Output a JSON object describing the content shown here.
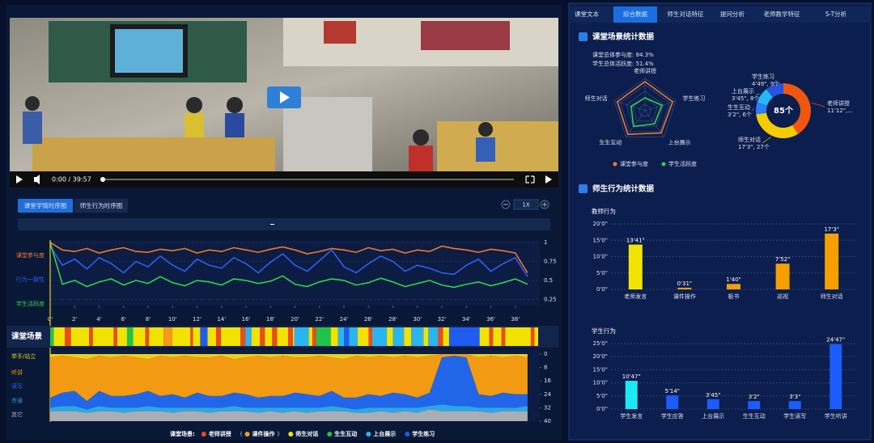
{
  "ui": {
    "video_time": "0:00 / 39:57",
    "tabs_left": [
      "课堂学情时序图",
      "师生行为时序图"
    ],
    "speed": "1X",
    "tabs_right": [
      "课堂文本",
      "综合数据",
      "师生对话特征",
      "提问分析",
      "老师教学特征",
      "S-T分析"
    ],
    "section1": "课堂场景统计数据",
    "stats": [
      "课堂总体参与度: 84.3%",
      "学生总体活跃度: 51.4%"
    ],
    "section2": "师生行为统计数据"
  },
  "chart_data": [
    {
      "type": "line",
      "x": [
        0,
        1,
        2,
        3,
        4,
        5,
        6,
        7,
        8,
        9,
        10,
        11,
        12,
        13,
        14,
        15,
        16,
        17,
        18,
        19,
        20,
        21,
        22,
        23,
        24,
        25,
        26,
        27,
        28,
        29,
        30,
        31,
        32,
        33,
        34,
        35,
        36,
        37,
        38,
        39
      ],
      "xlim": [
        0,
        40
      ],
      "xticks": [
        {
          "value": 0,
          "label": "0'"
        },
        {
          "value": 2,
          "label": "2'"
        },
        {
          "value": 4,
          "label": "4'"
        },
        {
          "value": 6,
          "label": "6'"
        },
        {
          "value": 8,
          "label": "8'"
        },
        {
          "value": 10,
          "label": "10'"
        },
        {
          "value": 12,
          "label": "12'"
        },
        {
          "value": 14,
          "label": "14'"
        },
        {
          "value": 16,
          "label": "16'"
        },
        {
          "value": 18,
          "label": "18'"
        },
        {
          "value": 20,
          "label": "20'"
        },
        {
          "value": 22,
          "label": "22'"
        },
        {
          "value": 24,
          "label": "24'"
        },
        {
          "value": 26,
          "label": "26'"
        },
        {
          "value": 28,
          "label": "28'"
        },
        {
          "value": 30,
          "label": "30'"
        },
        {
          "value": 32,
          "label": "32'"
        },
        {
          "value": 34,
          "label": "34'"
        },
        {
          "value": 36,
          "label": "36'"
        },
        {
          "value": 38,
          "label": "38'"
        }
      ],
      "ylim": [
        0.17,
        1.03
      ],
      "yticks": [
        1,
        0.75,
        0.5,
        0.25
      ],
      "series": [
        {
          "name": "课堂参与度",
          "color": "#f07a2a",
          "values": [
            1.0,
            0.9,
            0.88,
            0.92,
            0.86,
            0.9,
            0.93,
            0.88,
            0.87,
            0.91,
            0.89,
            0.92,
            0.86,
            0.9,
            0.88,
            0.93,
            0.9,
            0.87,
            0.91,
            0.94,
            0.9,
            0.85,
            0.88,
            0.92,
            0.9,
            0.87,
            0.93,
            0.89,
            0.91,
            0.86,
            0.9,
            0.88,
            0.95,
            0.92,
            0.9,
            0.87,
            0.91,
            0.89,
            0.86,
            0.6
          ]
        },
        {
          "name": "行为一致性",
          "color": "#2f5ff0",
          "values": [
            0.95,
            0.7,
            0.78,
            0.65,
            0.8,
            0.72,
            0.6,
            0.75,
            0.68,
            0.82,
            0.7,
            0.62,
            0.78,
            0.7,
            0.66,
            0.8,
            0.72,
            0.6,
            0.74,
            0.85,
            0.7,
            0.62,
            0.76,
            0.9,
            0.68,
            0.6,
            0.72,
            0.82,
            0.75,
            0.62,
            0.7,
            0.66,
            0.6,
            0.58,
            0.7,
            0.78,
            0.62,
            0.72,
            0.8,
            0.55
          ]
        },
        {
          "name": "学生活跃度",
          "color": "#2ed34a",
          "values": [
            1.0,
            0.45,
            0.5,
            0.42,
            0.48,
            0.52,
            0.44,
            0.5,
            0.46,
            0.55,
            0.47,
            0.43,
            0.5,
            0.48,
            0.44,
            0.52,
            0.5,
            0.46,
            0.49,
            0.56,
            0.45,
            0.42,
            0.48,
            0.52,
            0.5,
            0.44,
            0.47,
            0.53,
            0.48,
            0.42,
            0.46,
            0.5,
            0.44,
            0.41,
            0.45,
            0.48,
            0.43,
            0.47,
            0.52,
            0.45
          ]
        }
      ]
    },
    {
      "type": "timeline",
      "title": "课堂场景",
      "xlim": [
        0,
        40
      ],
      "starts": [
        0,
        0.3,
        1.2,
        1.7,
        3.2,
        3.5,
        5.2,
        5.5,
        6.3,
        6.8,
        7.8,
        8.1,
        9.3,
        10.0,
        11.5,
        11.7,
        12.3,
        12.9,
        13.6,
        14.0,
        15.6,
        16.0,
        16.5,
        17.2,
        17.6,
        18.2,
        18.6,
        19.5,
        19.9,
        20.0,
        21.2,
        21.5,
        21.8,
        23.0,
        23.6,
        24.1,
        24.5,
        25.2,
        26.1,
        26.4,
        27.6,
        28.1,
        29.0,
        29.6,
        30.6,
        31.0,
        31.8,
        32.2,
        32.7,
        35.2,
        36.0,
        36.3,
        37.0,
        37.3,
        39.4,
        39.7
      ],
      "scenes": [
        "生生互动",
        "师生对话",
        "老师讲授",
        "师生对话",
        "老师讲授",
        "师生对话",
        "老师讲授",
        "师生对话",
        "生生互动",
        "师生对话",
        "老师讲授",
        "师生对话",
        "课件操作",
        "师生对话",
        "老师讲授",
        "师生对话",
        "学生练习",
        "师生对话",
        "老师讲授",
        "师生对话",
        "老师讲授",
        "上台展示",
        "师生对话",
        "老师讲授",
        "师生对话",
        "老师讲授",
        "师生对话",
        "老师讲授",
        "师生对话",
        "上台展示",
        "师生对话",
        "老师讲授",
        "生生互动",
        "师生对话",
        "上台展示",
        "学生练习",
        "上台展示",
        "师生对话",
        "老师讲授",
        "上台展示",
        "师生对话",
        "上台展示",
        "师生对话",
        "上台展示",
        "师生对话",
        "上台展示",
        "老师讲授",
        "师生对话",
        "学生练习",
        "师生对话",
        "老师讲授",
        "师生对话",
        "老师讲授",
        "师生对话",
        "老师讲授",
        "师生对话"
      ],
      "legend_title": "课堂场景:",
      "legend": [
        {
          "name": "老师讲授",
          "color": "#ee4a1a"
        },
        {
          "name": "课件操作",
          "color": "#f59a1c",
          "prefix": "(",
          "suffix": ")"
        },
        {
          "name": "师生对话",
          "color": "#f2e200"
        },
        {
          "name": "生生互动",
          "color": "#22c34a"
        },
        {
          "name": "上台展示",
          "color": "#2bb5f0"
        },
        {
          "name": "学生练习",
          "color": "#1e5bf0"
        }
      ]
    },
    {
      "type": "stacked_area",
      "x": [
        0,
        1,
        2,
        3,
        4,
        5,
        6,
        7,
        8,
        9,
        10,
        11,
        12,
        13,
        14,
        15,
        16,
        17,
        18,
        19,
        20,
        21,
        22,
        23,
        24,
        25,
        26,
        27,
        28,
        29,
        30,
        31,
        32,
        33,
        34,
        35,
        36,
        37,
        38,
        39
      ],
      "xlim": [
        0,
        40
      ],
      "ylim": [
        0,
        40
      ],
      "yticks": [
        0,
        8,
        16,
        24,
        32,
        40
      ],
      "series": [
        {
          "name": "举手/站立",
          "color": "#e8d21a",
          "values": [
            2,
            1,
            2,
            3,
            1,
            2,
            1,
            2,
            3,
            1,
            2,
            1,
            2,
            2,
            1,
            3,
            2,
            1,
            2,
            1,
            2,
            2,
            1,
            2,
            3,
            1,
            2,
            1,
            2,
            1,
            2,
            1,
            0,
            0,
            0,
            2,
            1,
            2,
            1,
            2
          ]
        },
        {
          "name": "听讲",
          "color": "#f29a12",
          "values": [
            24,
            22,
            20,
            25,
            21,
            23,
            24,
            22,
            19,
            24,
            22,
            25,
            21,
            23,
            24,
            20,
            22,
            25,
            23,
            24,
            21,
            22,
            24,
            20,
            23,
            25,
            22,
            24,
            21,
            23,
            24,
            22,
            2,
            1,
            2,
            22,
            24,
            21,
            23,
            22
          ]
        },
        {
          "name": "读写",
          "color": "#2166e8",
          "values": [
            6,
            8,
            9,
            5,
            9,
            7,
            7,
            8,
            9,
            7,
            8,
            6,
            9,
            7,
            7,
            8,
            8,
            6,
            7,
            7,
            9,
            8,
            7,
            9,
            6,
            7,
            8,
            7,
            9,
            8,
            6,
            8,
            28,
            30,
            29,
            8,
            7,
            9,
            8,
            7
          ]
        },
        {
          "name": "齐读",
          "color": "#2aa8e6",
          "values": [
            2,
            3,
            3,
            2,
            3,
            2,
            3,
            2,
            3,
            2,
            3,
            2,
            2,
            3,
            2,
            3,
            2,
            3,
            2,
            3,
            2,
            3,
            2,
            3,
            2,
            2,
            3,
            2,
            3,
            2,
            3,
            2,
            4,
            3,
            3,
            2,
            3,
            2,
            2,
            3
          ]
        },
        {
          "name": "其它",
          "color": "#a9adb5",
          "values": [
            6,
            6,
            6,
            5,
            6,
            6,
            5,
            6,
            6,
            6,
            5,
            6,
            6,
            5,
            6,
            6,
            6,
            5,
            6,
            5,
            6,
            5,
            6,
            6,
            6,
            5,
            5,
            6,
            5,
            6,
            5,
            7,
            6,
            6,
            6,
            6,
            5,
            6,
            6,
            6
          ]
        }
      ]
    },
    {
      "type": "radar",
      "axes": [
        "老师讲授",
        "学生练习",
        "上台展示",
        "生生互动",
        "师生对话"
      ],
      "rlim": [
        0,
        1
      ],
      "series": [
        {
          "name": "课堂参与度",
          "color": "#f07a2a",
          "values": [
            0.9,
            0.9,
            0.85,
            0.9,
            0.9
          ]
        },
        {
          "name": "学生活跃度",
          "color": "#2ed34a",
          "values": [
            0.4,
            0.55,
            0.5,
            0.6,
            0.45
          ]
        }
      ]
    },
    {
      "type": "donut",
      "center_label": "85个",
      "names": [
        "老师讲授",
        "师生对话",
        "生生互动",
        "上台展示",
        "学生练习"
      ],
      "values": [
        35,
        27,
        6,
        8,
        9
      ],
      "details": [
        "11'12\",…",
        "17'3\", 27个",
        "3'2\", 6个",
        "3'45\", 8个",
        "4'49\", 9个"
      ],
      "colors": [
        "#f0560f",
        "#f5cc00",
        "#2a7dfc",
        "#23b8f5",
        "#2454e0"
      ]
    },
    {
      "type": "bar",
      "title": "教师行为",
      "categories": [
        "老师发言",
        "课件操作",
        "板书",
        "巡视",
        "师生对话"
      ],
      "values": [
        13.683,
        0.517,
        1.667,
        7.867,
        17.05
      ],
      "value_labels": [
        "13'41\"",
        "0'31\"",
        "1'40\"",
        "7'52\"",
        "17'3\""
      ],
      "colors": [
        "#f2e400",
        "#f5a000",
        "#f5a000",
        "#f5a000",
        "#f5a000"
      ],
      "ylim": [
        0,
        20
      ],
      "yticks": [
        {
          "value": 0,
          "label": "0'0\""
        },
        {
          "value": 5,
          "label": "5'0\""
        },
        {
          "value": 10,
          "label": "10'0\""
        },
        {
          "value": 15,
          "label": "15'0\""
        },
        {
          "value": 20,
          "label": "20'0\""
        }
      ]
    },
    {
      "type": "bar",
      "title": "学生行为",
      "categories": [
        "学生发言",
        "学生应答",
        "上台展示",
        "生生互动",
        "学生读写",
        "学生听讲"
      ],
      "values": [
        10.783,
        5.233,
        3.75,
        3.033,
        3.05,
        24.783
      ],
      "value_labels": [
        "10'47\"",
        "5'14\"",
        "3'45\"",
        "3'2\"",
        "3'3\"",
        "24'47\""
      ],
      "colors": [
        "#1de9f5",
        "#1a5cff",
        "#1a5cff",
        "#1a5cff",
        "#1a5cff",
        "#1a5cff"
      ],
      "ylim": [
        0,
        25
      ],
      "yticks": [
        {
          "value": 0,
          "label": "0'0\""
        },
        {
          "value": 5,
          "label": "5'0\""
        },
        {
          "value": 10,
          "label": "10'0\""
        },
        {
          "value": 15,
          "label": "15'0\""
        },
        {
          "value": 20,
          "label": "20'0\""
        },
        {
          "value": 25,
          "label": "25'0\""
        }
      ]
    }
  ]
}
